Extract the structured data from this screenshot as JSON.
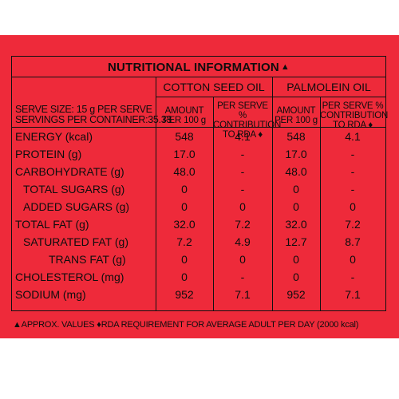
{
  "title": "NUTRITIONAL INFORMATION",
  "title_mark": "▲",
  "serve_size": "SERVE SIZE: 15 g PER SERVE",
  "servings": "SERVINGS PER CONTAINER:35.33",
  "columns": {
    "cotton": "COTTON SEED OIL",
    "palm": "PALMOLEIN OIL",
    "amount": [
      "AMOUNT",
      "PER 100 g"
    ],
    "per_serve": [
      "PER SERVE %",
      "CONTRIBUTION",
      "TO RDA ♦"
    ]
  },
  "rows": [
    {
      "label": "ENERGY (kcal)",
      "c1": "548",
      "c2": "4.1",
      "p1": "548",
      "p2": "4.1",
      "indent": false
    },
    {
      "label": "PROTEIN (g)",
      "c1": "17.0",
      "c2": "-",
      "p1": "17.0",
      "p2": "-",
      "indent": false
    },
    {
      "label": "CARBOHYDRATE (g)",
      "c1": "48.0",
      "c2": "-",
      "p1": "48.0",
      "p2": "-",
      "indent": false
    },
    {
      "label": "TOTAL SUGARS (g)",
      "c1": "0",
      "c2": "-",
      "p1": "0",
      "p2": "-",
      "indent": true
    },
    {
      "label": "ADDED SUGARS (g)",
      "c1": "0",
      "c2": "0",
      "p1": "0",
      "p2": "0",
      "indent": true
    },
    {
      "label": "TOTAL FAT (g)",
      "c1": "32.0",
      "c2": "7.2",
      "p1": "32.0",
      "p2": "7.2",
      "indent": false
    },
    {
      "label": "SATURATED FAT (g)",
      "c1": "7.2",
      "c2": "4.9",
      "p1": "12.7",
      "p2": "8.7",
      "indent": true
    },
    {
      "label": "TRANS FAT (g)",
      "c1": "0",
      "c2": "0",
      "p1": "0",
      "p2": "0",
      "indent": "deep"
    },
    {
      "label": "CHOLESTEROL (mg)",
      "c1": "0",
      "c2": "-",
      "p1": "0",
      "p2": "-",
      "indent": false
    },
    {
      "label": "SODIUM (mg)",
      "c1": "952",
      "c2": "7.1",
      "p1": "952",
      "p2": "7.1",
      "indent": false
    }
  ],
  "footnote": "▲APPROX. VALUES ♦RDA REQUIREMENT FOR AVERAGE ADULT PER DAY (2000 kcal)",
  "colors": {
    "background": "#ee2a3a",
    "ink": "#0d0d0d"
  }
}
